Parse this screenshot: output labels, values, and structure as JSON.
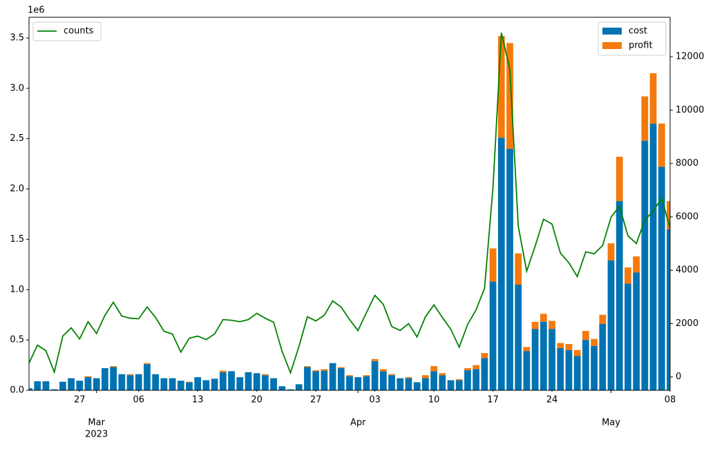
{
  "chart_data": {
    "type": "bar",
    "x": [
      "2023-02-21",
      "2023-02-22",
      "2023-02-23",
      "2023-02-24",
      "2023-02-25",
      "2023-02-26",
      "2023-02-27",
      "2023-02-28",
      "2023-03-01",
      "2023-03-02",
      "2023-03-03",
      "2023-03-04",
      "2023-03-05",
      "2023-03-06",
      "2023-03-07",
      "2023-03-08",
      "2023-03-09",
      "2023-03-10",
      "2023-03-11",
      "2023-03-12",
      "2023-03-13",
      "2023-03-14",
      "2023-03-15",
      "2023-03-16",
      "2023-03-17",
      "2023-03-18",
      "2023-03-19",
      "2023-03-20",
      "2023-03-21",
      "2023-03-22",
      "2023-03-23",
      "2023-03-24",
      "2023-03-25",
      "2023-03-26",
      "2023-03-27",
      "2023-03-28",
      "2023-03-29",
      "2023-03-30",
      "2023-03-31",
      "2023-04-01",
      "2023-04-02",
      "2023-04-03",
      "2023-04-04",
      "2023-04-05",
      "2023-04-06",
      "2023-04-07",
      "2023-04-08",
      "2023-04-09",
      "2023-04-10",
      "2023-04-11",
      "2023-04-12",
      "2023-04-13",
      "2023-04-14",
      "2023-04-15",
      "2023-04-16",
      "2023-04-17",
      "2023-04-18",
      "2023-04-19",
      "2023-04-20",
      "2023-04-21",
      "2023-04-22",
      "2023-04-23",
      "2023-04-24",
      "2023-04-25",
      "2023-04-26",
      "2023-04-27",
      "2023-04-28",
      "2023-04-29",
      "2023-04-30",
      "2023-05-01",
      "2023-05-02",
      "2023-05-03",
      "2023-05-04",
      "2023-05-05",
      "2023-05-06",
      "2023-05-07",
      "2023-05-08"
    ],
    "series": [
      {
        "name": "cost",
        "color": "#0173b2",
        "legend": "upper right",
        "values": [
          20000,
          90000,
          90000,
          10000,
          85000,
          120000,
          95000,
          130000,
          120000,
          220000,
          230000,
          160000,
          150000,
          160000,
          260000,
          160000,
          120000,
          120000,
          95000,
          80000,
          130000,
          100000,
          115000,
          180000,
          190000,
          130000,
          180000,
          170000,
          150000,
          120000,
          40000,
          10000,
          60000,
          230000,
          190000,
          195000,
          270000,
          220000,
          140000,
          130000,
          140000,
          290000,
          190000,
          150000,
          120000,
          120000,
          80000,
          120000,
          190000,
          150000,
          100000,
          100000,
          200000,
          210000,
          320000,
          1080000,
          2510000,
          2400000,
          1050000,
          390000,
          610000,
          680000,
          610000,
          420000,
          400000,
          340000,
          500000,
          440000,
          660000,
          1290000,
          1880000,
          1060000,
          1170000,
          2480000,
          2650000,
          2220000,
          1600000
        ]
      },
      {
        "name": "profit",
        "color": "#f47a0c",
        "legend": "upper right",
        "values": [
          0,
          0,
          0,
          0,
          0,
          0,
          0,
          10000,
          0,
          0,
          10000,
          0,
          10000,
          0,
          10000,
          0,
          0,
          0,
          0,
          5000,
          0,
          0,
          0,
          15000,
          0,
          0,
          0,
          0,
          10000,
          0,
          0,
          0,
          0,
          10000,
          10000,
          15000,
          0,
          10000,
          10000,
          0,
          10000,
          20000,
          20000,
          10000,
          0,
          10000,
          0,
          30000,
          50000,
          20000,
          0,
          10000,
          20000,
          40000,
          50000,
          330000,
          1010000,
          1050000,
          310000,
          40000,
          70000,
          80000,
          80000,
          50000,
          60000,
          60000,
          90000,
          70000,
          90000,
          170000,
          440000,
          160000,
          160000,
          440000,
          500000,
          430000,
          280000
        ]
      },
      {
        "name": "counts",
        "type": "line",
        "axis": "y2",
        "color": "#008000",
        "legend": "upper left",
        "values": [
          520,
          1190,
          985,
          180,
          1530,
          1840,
          1425,
          2070,
          1630,
          2310,
          2800,
          2280,
          2200,
          2180,
          2620,
          2230,
          1710,
          1610,
          930,
          1450,
          1530,
          1400,
          1610,
          2150,
          2125,
          2070,
          2150,
          2385,
          2200,
          2050,
          960,
          155,
          1140,
          2255,
          2100,
          2310,
          2850,
          2620,
          2150,
          1740,
          2410,
          3060,
          2720,
          1890,
          1740,
          2000,
          1500,
          2255,
          2700,
          2230,
          1790,
          1115,
          1970,
          2515,
          3320,
          7075,
          12900,
          11535,
          5650,
          3965,
          4900,
          5910,
          5730,
          4640,
          4280,
          3760,
          4690,
          4615,
          4925,
          5990,
          6400,
          5290,
          5000,
          5880,
          6220,
          6690,
          5570
        ]
      }
    ],
    "xlim": [
      "2023-02-21",
      "2023-05-08"
    ],
    "xticks": [
      {
        "value": "2023-02-27",
        "label": "27"
      },
      {
        "value": "2023-03-06",
        "label": "06"
      },
      {
        "value": "2023-03-13",
        "label": "13"
      },
      {
        "value": "2023-03-20",
        "label": "20"
      },
      {
        "value": "2023-03-27",
        "label": "27"
      },
      {
        "value": "2023-04-03",
        "label": "03"
      },
      {
        "value": "2023-04-10",
        "label": "10"
      },
      {
        "value": "2023-04-17",
        "label": "17"
      },
      {
        "value": "2023-04-24",
        "label": "24"
      },
      {
        "value": "2023-05-08",
        "label": "08"
      }
    ],
    "xticks_major": [
      {
        "value": "2023-03-01",
        "label": "Mar",
        "sublabel": "2023"
      },
      {
        "value": "2023-04-01",
        "label": "Apr"
      },
      {
        "value": "2023-05-01",
        "label": "May"
      }
    ],
    "ylim": [
      0,
      3706000
    ],
    "yticks": [
      {
        "value": 0,
        "label": "0.0"
      },
      {
        "value": 500000,
        "label": "0.5"
      },
      {
        "value": 1000000,
        "label": "1.0"
      },
      {
        "value": 1500000,
        "label": "1.5"
      },
      {
        "value": 2000000,
        "label": "2.0"
      },
      {
        "value": 2500000,
        "label": "2.5"
      },
      {
        "value": 3000000,
        "label": "3.0"
      },
      {
        "value": 3500000,
        "label": "3.5"
      }
    ],
    "y_offset_label": "1e6",
    "y2lim": [
      -500,
      13480
    ],
    "y2ticks": [
      0,
      2000,
      4000,
      6000,
      8000,
      10000,
      12000
    ],
    "stacked": true
  }
}
